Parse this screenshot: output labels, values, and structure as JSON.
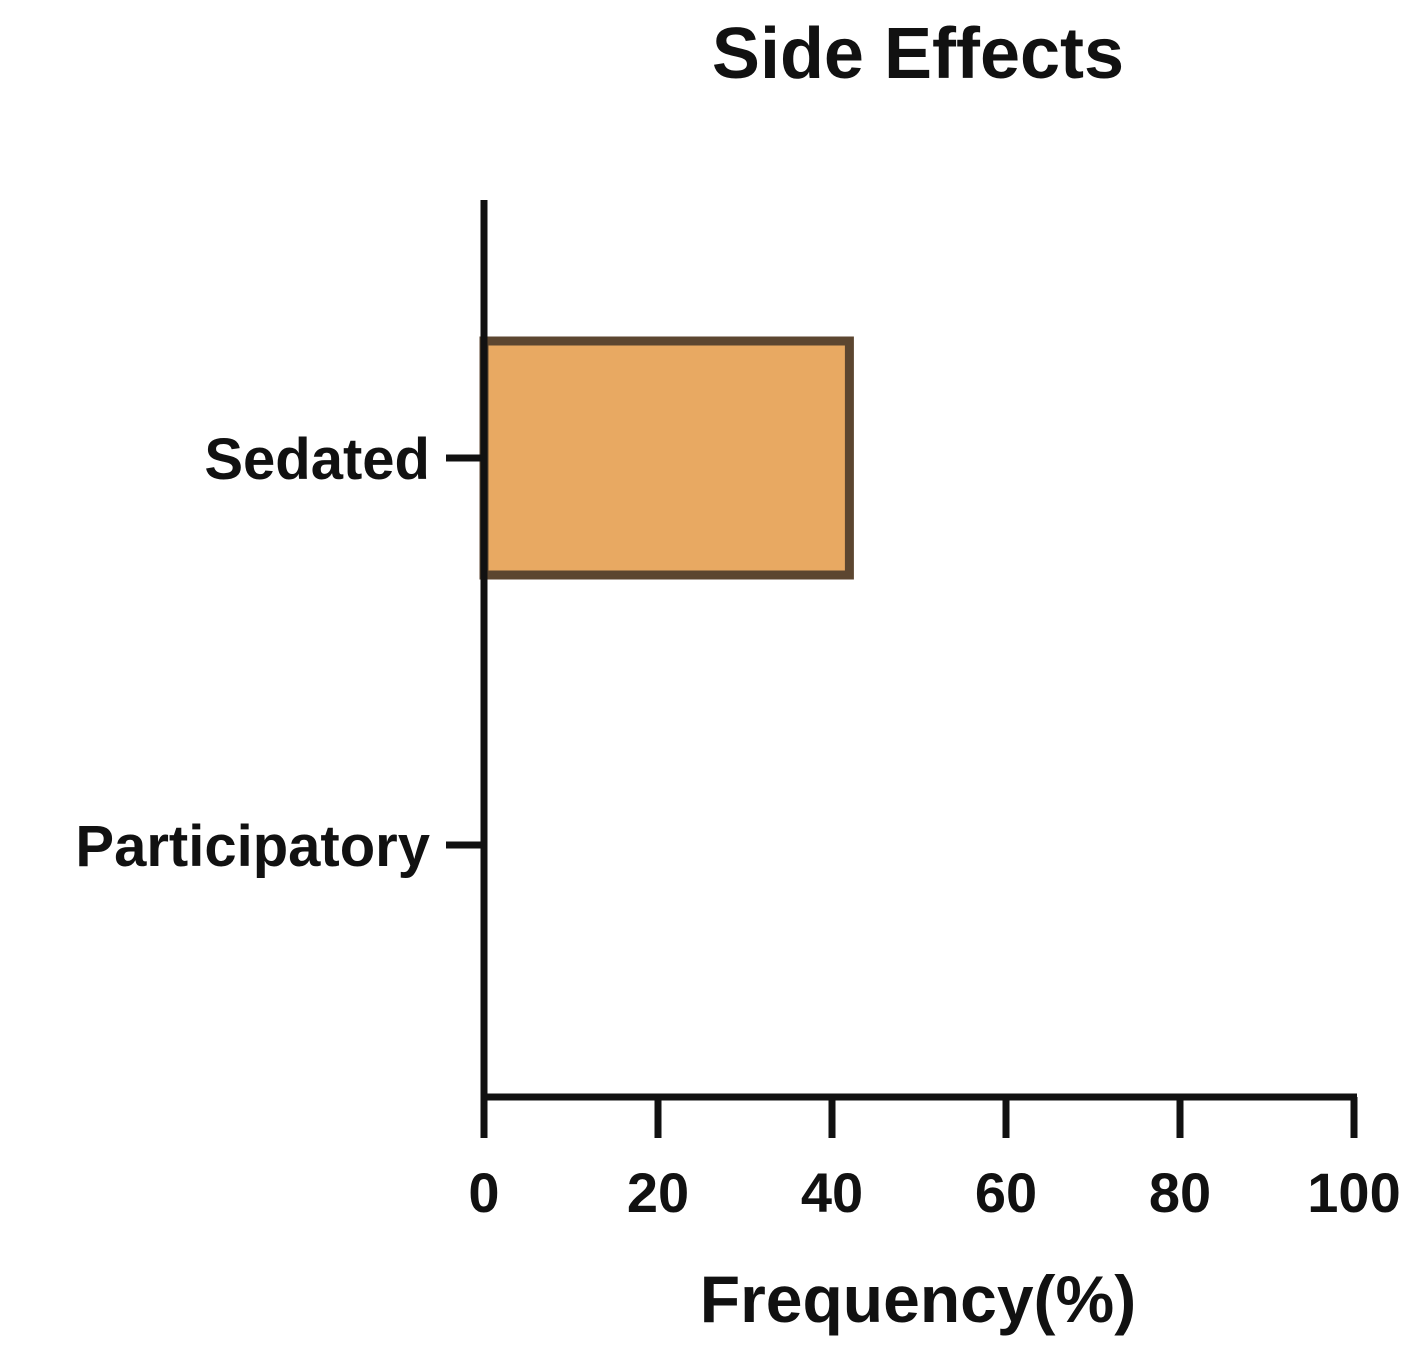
{
  "chart_data": {
    "type": "bar",
    "orientation": "horizontal",
    "title": "Side Effects",
    "categories": [
      "Sedated",
      "Participatory"
    ],
    "values": [
      42,
      0
    ],
    "xlabel": "Frequency(%)",
    "ylabel": "",
    "xlim": [
      0,
      100
    ],
    "xticks": [
      "0",
      "20",
      "40",
      "60",
      "80",
      "100"
    ],
    "grid": false,
    "legend": "none",
    "colors": {
      "bar_fill": "#E8A962",
      "bar_stroke": "#5C4630",
      "axis": "#111111"
    }
  }
}
